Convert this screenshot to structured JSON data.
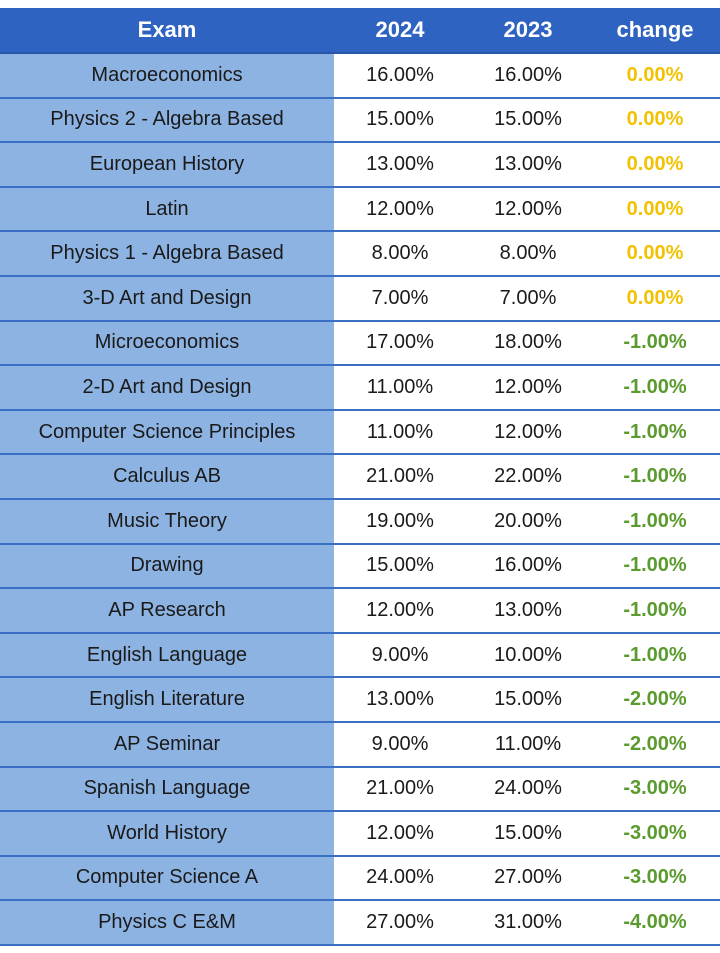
{
  "chart_data": {
    "type": "table",
    "columns": [
      "Exam",
      "2024",
      "2023",
      "change"
    ],
    "rows": [
      [
        "Macroeconomics",
        "16.00%",
        "16.00%",
        "0.00%"
      ],
      [
        "Physics 2 - Algebra Based",
        "15.00%",
        "15.00%",
        "0.00%"
      ],
      [
        "European History",
        "13.00%",
        "13.00%",
        "0.00%"
      ],
      [
        "Latin",
        "12.00%",
        "12.00%",
        "0.00%"
      ],
      [
        "Physics 1 - Algebra Based",
        "8.00%",
        "8.00%",
        "0.00%"
      ],
      [
        "3-D Art and Design",
        "7.00%",
        "7.00%",
        "0.00%"
      ],
      [
        "Microeconomics",
        "17.00%",
        "18.00%",
        "-1.00%"
      ],
      [
        "2-D Art and Design",
        "11.00%",
        "12.00%",
        "-1.00%"
      ],
      [
        "Computer Science Principles",
        "11.00%",
        "12.00%",
        "-1.00%"
      ],
      [
        "Calculus AB",
        "21.00%",
        "22.00%",
        "-1.00%"
      ],
      [
        "Music Theory",
        "19.00%",
        "20.00%",
        "-1.00%"
      ],
      [
        "Drawing",
        "15.00%",
        "16.00%",
        "-1.00%"
      ],
      [
        "AP Research",
        "12.00%",
        "13.00%",
        "-1.00%"
      ],
      [
        "English Language",
        "9.00%",
        "10.00%",
        "-1.00%"
      ],
      [
        "English Literature",
        "13.00%",
        "15.00%",
        "-2.00%"
      ],
      [
        "AP Seminar",
        "9.00%",
        "11.00%",
        "-2.00%"
      ],
      [
        "Spanish Language",
        "21.00%",
        "24.00%",
        "-3.00%"
      ],
      [
        "World History",
        "12.00%",
        "15.00%",
        "-3.00%"
      ],
      [
        "Computer Science A",
        "24.00%",
        "27.00%",
        "-3.00%"
      ],
      [
        "Physics C E&M",
        "27.00%",
        "31.00%",
        "-4.00%"
      ]
    ],
    "colors": {
      "header_bg": "#2f63c1",
      "exam_col_bg": "#8db3e2",
      "zero_change": "#f2c200",
      "negative_change": "#5a9a2e"
    }
  }
}
